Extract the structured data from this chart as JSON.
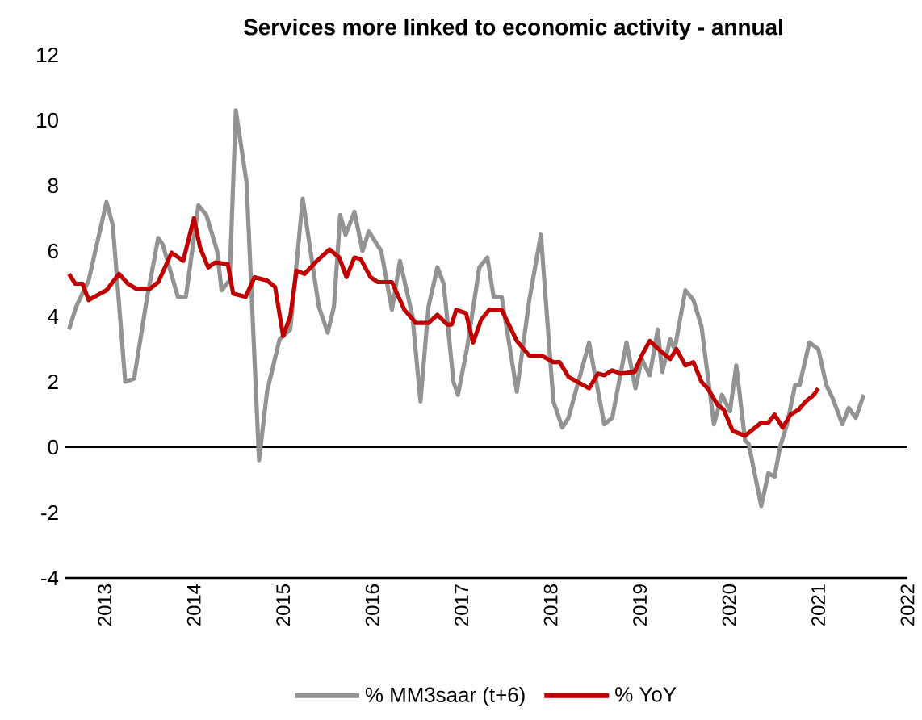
{
  "chart_data": {
    "type": "line",
    "title": "Services more linked to economic activity - annual",
    "xlim": [
      2012.55,
      2022.0
    ],
    "xticks": [
      2013,
      2014,
      2015,
      2016,
      2017,
      2018,
      2019,
      2020,
      2021,
      2022
    ],
    "ylim": [
      -4,
      12
    ],
    "yticks": [
      -4,
      -2,
      0,
      2,
      4,
      6,
      8,
      10,
      12
    ],
    "grid": false,
    "legend": "bottom",
    "marker": "none",
    "line_style": "solid",
    "ref_lines": [
      {
        "axis": "y",
        "value": 0,
        "color": "#000000"
      }
    ],
    "series": [
      {
        "name": "% MM3saar (t+6)",
        "color": "#939393",
        "x": [
          2012.6,
          2012.68,
          2012.82,
          2013.02,
          2013.09,
          2013.23,
          2013.33,
          2013.47,
          2013.6,
          2013.65,
          2013.82,
          2013.91,
          2014.05,
          2014.14,
          2014.26,
          2014.31,
          2014.4,
          2014.47,
          2014.59,
          2014.73,
          2014.82,
          2014.96,
          2015.08,
          2015.22,
          2015.4,
          2015.5,
          2015.57,
          2015.64,
          2015.7,
          2015.8,
          2015.89,
          2015.96,
          2016.1,
          2016.22,
          2016.31,
          2016.45,
          2016.54,
          2016.63,
          2016.73,
          2016.8,
          2016.91,
          2016.96,
          2017.06,
          2017.2,
          2017.29,
          2017.36,
          2017.45,
          2017.62,
          2017.76,
          2017.89,
          2018.03,
          2018.13,
          2018.2,
          2018.43,
          2018.6,
          2018.69,
          2018.85,
          2018.95,
          2019.02,
          2019.11,
          2019.2,
          2019.25,
          2019.34,
          2019.39,
          2019.51,
          2019.6,
          2019.69,
          2019.83,
          2019.92,
          2020.01,
          2020.08,
          2020.18,
          2020.22,
          2020.36,
          2020.44,
          2020.51,
          2020.57,
          2020.65,
          2020.74,
          2020.79,
          2020.9,
          2021.0,
          2021.09,
          2021.16,
          2021.27,
          2021.34,
          2021.42,
          2021.51
        ],
        "values": [
          3.6,
          4.3,
          5.1,
          7.5,
          6.8,
          2.0,
          2.1,
          4.5,
          6.4,
          6.2,
          4.6,
          4.6,
          7.4,
          7.1,
          6.0,
          4.8,
          5.1,
          10.3,
          8.1,
          -0.4,
          1.7,
          3.3,
          3.6,
          7.6,
          4.3,
          3.5,
          4.3,
          7.1,
          6.5,
          7.2,
          6.0,
          6.6,
          6.0,
          4.2,
          5.7,
          4.0,
          1.4,
          4.3,
          5.5,
          5.0,
          2.0,
          1.6,
          3.0,
          5.5,
          5.8,
          4.6,
          4.6,
          1.7,
          4.5,
          6.5,
          1.4,
          0.6,
          0.9,
          3.2,
          0.7,
          0.9,
          3.2,
          1.8,
          2.7,
          2.2,
          3.6,
          2.3,
          3.3,
          3.0,
          4.8,
          4.5,
          3.7,
          0.7,
          1.6,
          1.1,
          2.5,
          0.2,
          0.1,
          -1.8,
          -0.8,
          -0.9,
          0.0,
          0.7,
          1.9,
          1.9,
          3.2,
          3.0,
          1.9,
          1.5,
          0.7,
          1.2,
          0.9,
          1.6
        ]
      },
      {
        "name": "% YoY",
        "color": "#c00000",
        "x": [
          2012.6,
          2012.67,
          2012.75,
          2012.82,
          2012.95,
          2013.02,
          2013.16,
          2013.26,
          2013.35,
          2013.51,
          2013.6,
          2013.75,
          2013.88,
          2014.0,
          2014.07,
          2014.16,
          2014.24,
          2014.38,
          2014.44,
          2014.58,
          2014.68,
          2014.82,
          2014.91,
          2015.0,
          2015.08,
          2015.15,
          2015.24,
          2015.38,
          2015.52,
          2015.63,
          2015.71,
          2015.8,
          2015.87,
          2015.98,
          2016.06,
          2016.22,
          2016.36,
          2016.49,
          2016.63,
          2016.73,
          2016.84,
          2016.89,
          2016.94,
          2017.05,
          2017.13,
          2017.22,
          2017.31,
          2017.45,
          2017.62,
          2017.76,
          2017.9,
          2018.03,
          2018.1,
          2018.2,
          2018.43,
          2018.53,
          2018.6,
          2018.69,
          2018.78,
          2018.94,
          2019.02,
          2019.11,
          2019.25,
          2019.34,
          2019.41,
          2019.51,
          2019.6,
          2019.69,
          2019.76,
          2019.87,
          2019.94,
          2020.04,
          2020.18,
          2020.36,
          2020.44,
          2020.51,
          2020.6,
          2020.69,
          2020.78,
          2020.86,
          2020.95,
          2021.0
        ],
        "values": [
          5.3,
          5.0,
          5.0,
          4.5,
          4.7,
          4.8,
          5.3,
          5.0,
          4.85,
          4.85,
          5.05,
          5.95,
          5.7,
          7.0,
          6.1,
          5.5,
          5.65,
          5.6,
          4.7,
          4.6,
          5.2,
          5.1,
          4.9,
          3.4,
          4.0,
          5.4,
          5.3,
          5.7,
          6.05,
          5.8,
          5.2,
          5.8,
          5.75,
          5.2,
          5.05,
          5.05,
          4.2,
          3.8,
          3.8,
          4.05,
          3.75,
          3.75,
          4.2,
          4.1,
          3.2,
          3.9,
          4.2,
          4.2,
          3.25,
          2.8,
          2.8,
          2.6,
          2.6,
          2.15,
          1.8,
          2.25,
          2.2,
          2.35,
          2.25,
          2.3,
          2.8,
          3.25,
          2.9,
          2.7,
          3.0,
          2.5,
          2.6,
          2.0,
          1.8,
          1.3,
          1.15,
          0.5,
          0.35,
          0.75,
          0.75,
          1.0,
          0.6,
          1.0,
          1.15,
          1.4,
          1.6,
          1.8
        ]
      }
    ]
  }
}
